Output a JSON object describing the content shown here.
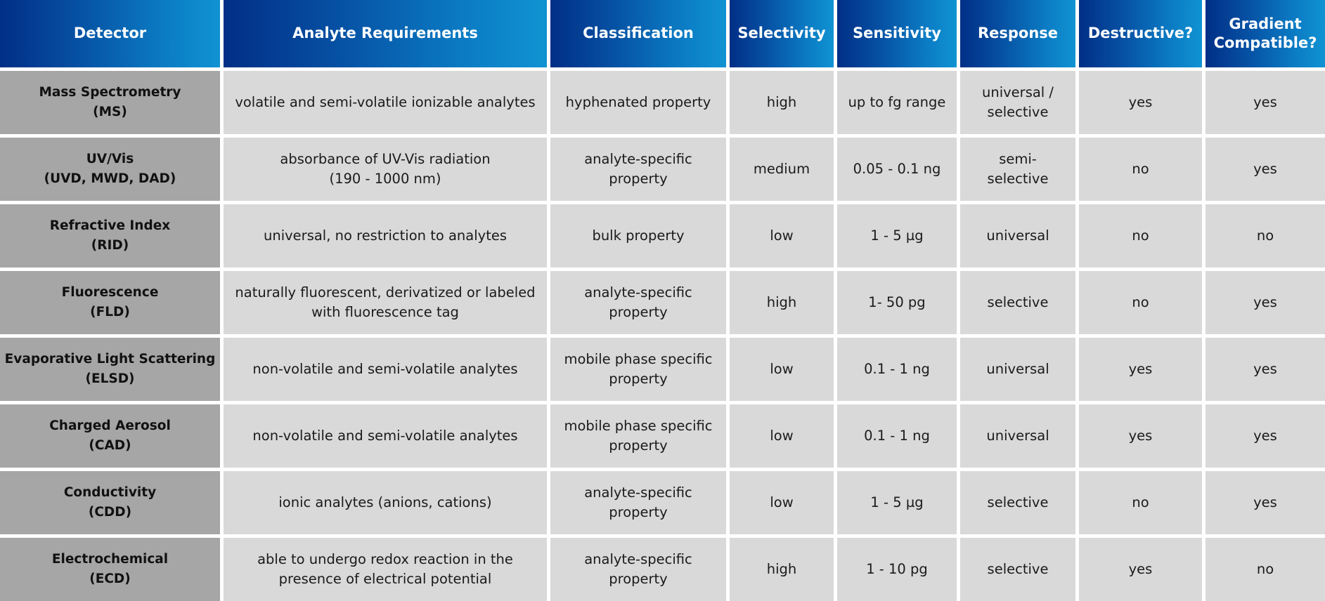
{
  "table": {
    "headers": [
      "Detector",
      "Analyte Requirements",
      "Classification",
      "Selectivity",
      "Sensitivity",
      "Response",
      "Destructive?",
      "Gradient\nCompatible?"
    ],
    "rows": [
      {
        "detector_name": "Mass Spectrometry",
        "detector_abbr": "(MS)",
        "analyte_requirements": "volatile and semi-volatile ionizable analytes",
        "classification": "hyphenated property",
        "selectivity": "high",
        "sensitivity": "up to fg range",
        "response": "universal /\nselective",
        "destructive": "yes",
        "gradient_compatible": "yes"
      },
      {
        "detector_name": "UV/Vis",
        "detector_abbr": "(UVD, MWD, DAD)",
        "analyte_requirements": "absorbance of UV-Vis radiation\n(190 - 1000 nm)",
        "classification": "analyte-specific\nproperty",
        "selectivity": "medium",
        "sensitivity": "0.05 - 0.1 ng",
        "response": "semi-\nselective",
        "destructive": "no",
        "gradient_compatible": "yes"
      },
      {
        "detector_name": "Refractive Index",
        "detector_abbr": "(RID)",
        "analyte_requirements": "universal, no restriction to analytes",
        "classification": "bulk property",
        "selectivity": "low",
        "sensitivity": "1 - 5 µg",
        "response": "universal",
        "destructive": "no",
        "gradient_compatible": "no"
      },
      {
        "detector_name": "Fluorescence",
        "detector_abbr": "(FLD)",
        "analyte_requirements": "naturally fluorescent, derivatized or labeled\nwith fluorescence tag",
        "classification": "analyte-specific\nproperty",
        "selectivity": "high",
        "sensitivity": "1- 50 pg",
        "response": "selective",
        "destructive": "no",
        "gradient_compatible": "yes"
      },
      {
        "detector_name": "Evaporative Light Scattering",
        "detector_abbr": "(ELSD)",
        "analyte_requirements": "non-volatile and semi-volatile analytes",
        "classification": "mobile phase specific\nproperty",
        "selectivity": "low",
        "sensitivity": "0.1 -  1 ng",
        "response": "universal",
        "destructive": "yes",
        "gradient_compatible": "yes"
      },
      {
        "detector_name": "Charged Aerosol",
        "detector_abbr": "(CAD)",
        "analyte_requirements": "non-volatile and semi-volatile analytes",
        "classification": "mobile phase specific\nproperty",
        "selectivity": "low",
        "sensitivity": "0.1 - 1 ng",
        "response": "universal",
        "destructive": "yes",
        "gradient_compatible": "yes"
      },
      {
        "detector_name": "Conductivity",
        "detector_abbr": "(CDD)",
        "analyte_requirements": "ionic analytes (anions, cations)",
        "classification": "analyte-specific\nproperty",
        "selectivity": "low",
        "sensitivity": "1 - 5 µg",
        "response": "selective",
        "destructive": "no",
        "gradient_compatible": "yes"
      },
      {
        "detector_name": "Electrochemical",
        "detector_abbr": "(ECD)",
        "analyte_requirements": "able to undergo redox reaction in the\npresence of electrical potential",
        "classification": "analyte-specific\nproperty",
        "selectivity": "high",
        "sensitivity": "1 - 10 pg",
        "response": "selective",
        "destructive": "yes",
        "gradient_compatible": "no"
      }
    ]
  },
  "colors": {
    "header_gradient_start": "#012f86",
    "header_gradient_end": "#1093d2",
    "header_text": "#ffffff",
    "detector_cell_bg": "#a6a6a6",
    "data_cell_bg": "#d9d9d9",
    "gap": "#ffffff"
  }
}
